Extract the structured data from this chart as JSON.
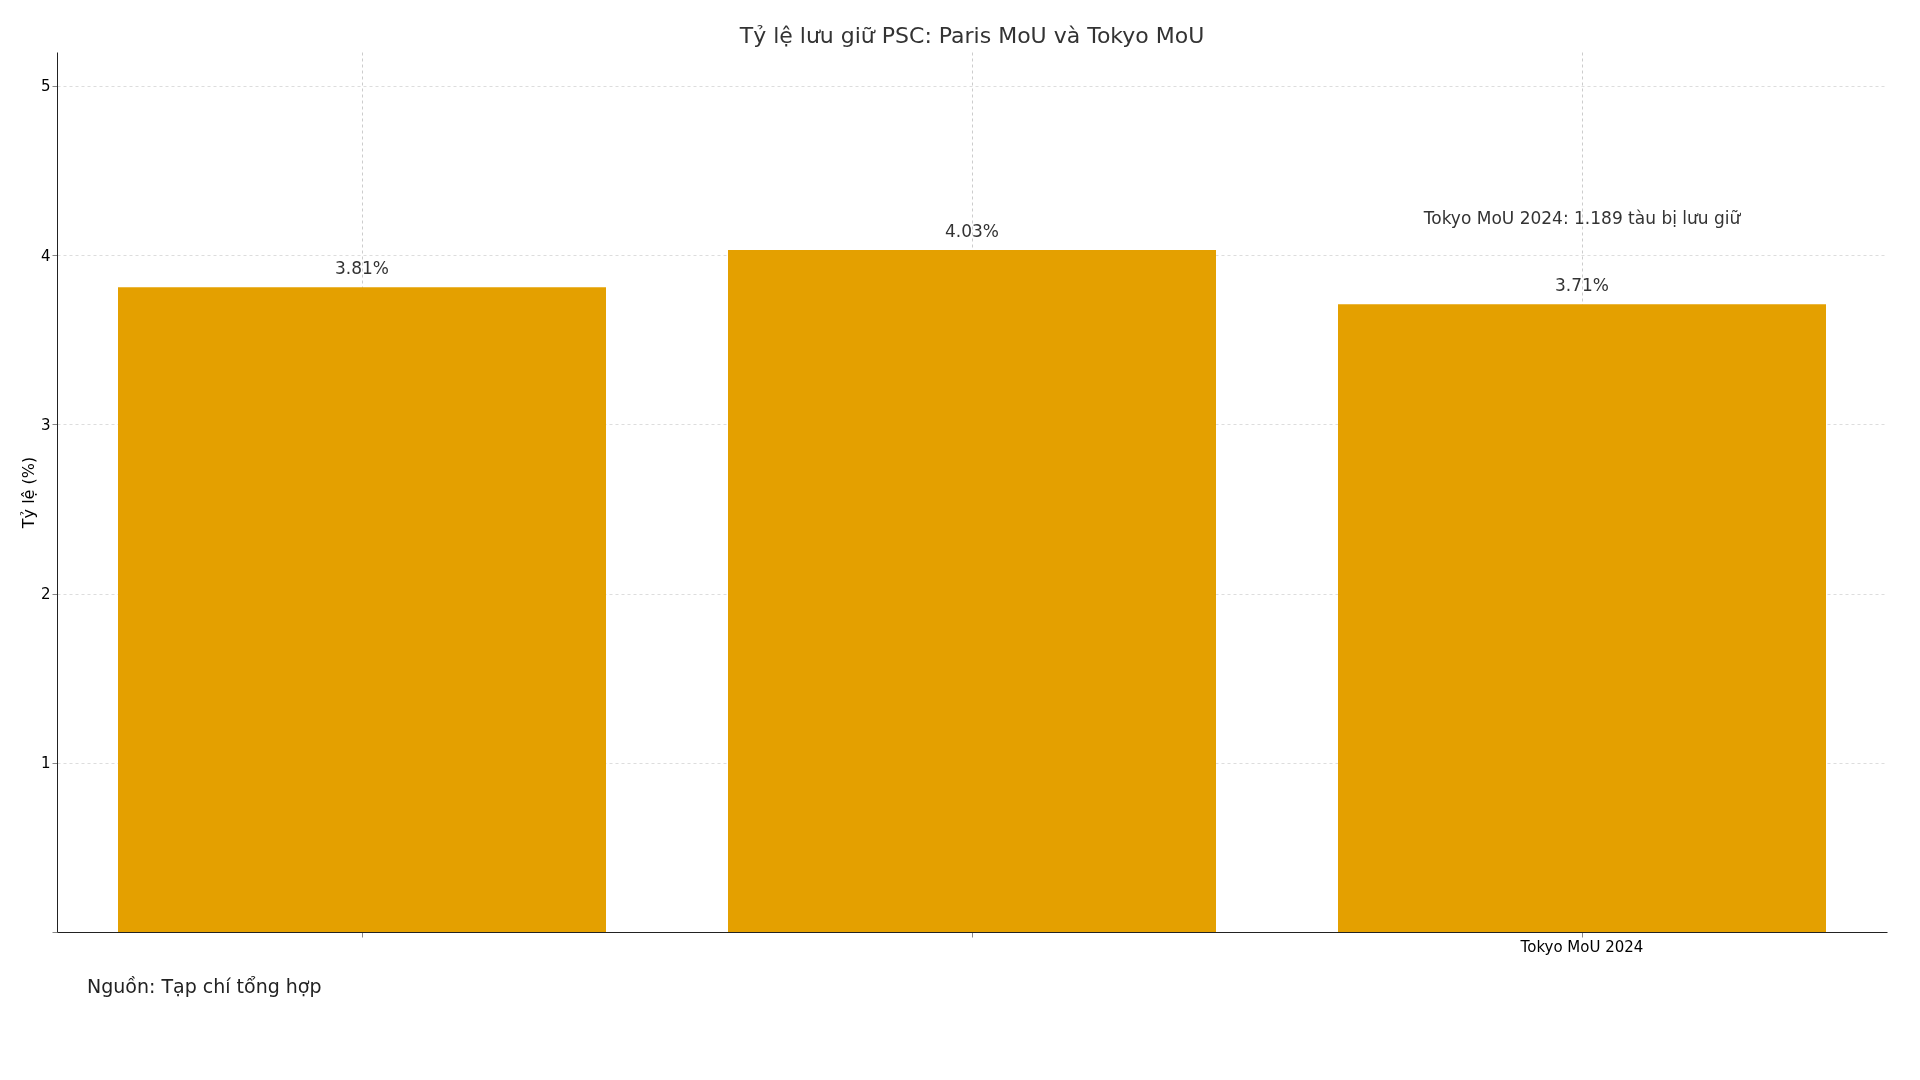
{
  "chart_data": {
    "type": "bar",
    "title": "Tỷ lệ lưu giữ PSC: Paris MoU và Tokyo MoU",
    "ylabel": "Tỷ lệ (%)",
    "categories": [
      null,
      null,
      "Tokyo MoU 2024"
    ],
    "values": [
      3.81,
      4.03,
      3.71
    ],
    "value_labels": [
      "3.81%",
      "4.03%",
      "3.71%"
    ],
    "color": "#e4a000",
    "ylim": [
      0,
      5.2
    ],
    "yticks": [
      {
        "value": 0,
        "label": null
      },
      1,
      2,
      3,
      4,
      5
    ],
    "grid": true,
    "annotations": [
      "Tokyo MoU 2024: 1.189 tàu bị lưu giữ",
      "Nguồn: Tạp chí tổng hợp"
    ]
  }
}
